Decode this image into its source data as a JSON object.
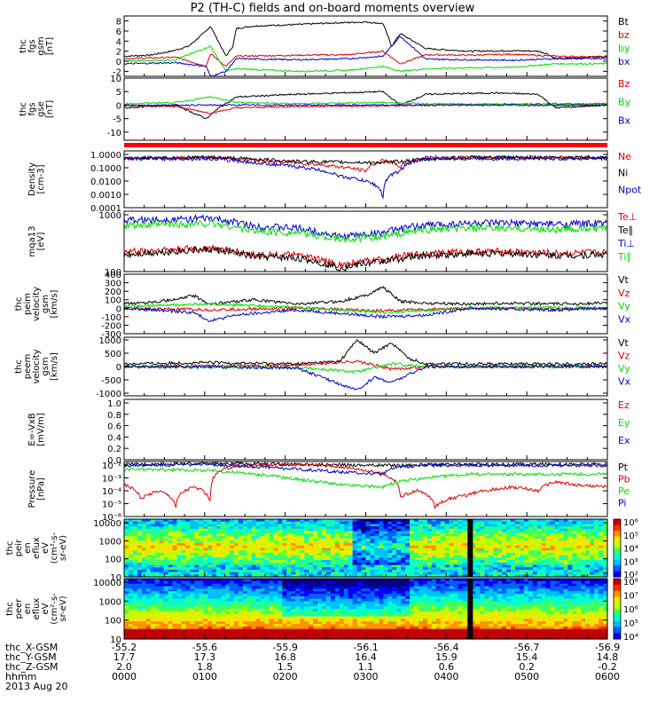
{
  "title": "P2 (TH-C) fields and on-board moments overview",
  "colors": {
    "black": "#000000",
    "red": "#e00000",
    "green": "#00dd00",
    "blue": "#0000d0"
  },
  "chart_data": [
    {
      "id": "fgs-gsm",
      "type": "line",
      "ylabel": [
        "thc",
        "fgs",
        "gsm",
        "[nT]"
      ],
      "ylim": [
        -3,
        9
      ],
      "yticks": [
        8,
        6,
        4,
        2,
        0,
        -2
      ],
      "series": [
        {
          "name": "Bt",
          "color": "#000000",
          "x": [
            0,
            30,
            55,
            75,
            95,
            100,
            118,
            126,
            130,
            150,
            200,
            240,
            280,
            300,
            310,
            320,
            350,
            400,
            450,
            480,
            490,
            500,
            560
          ],
          "values": [
            1,
            1.2,
            2,
            3,
            6,
            7,
            1,
            3,
            6.5,
            7,
            7.3,
            7.6,
            7.8,
            7.5,
            3,
            5.5,
            2.5,
            2,
            2.1,
            2,
            1.5,
            0.5,
            1
          ]
        },
        {
          "name": "bz",
          "color": "#e00000",
          "x": [
            0,
            60,
            95,
            100,
            118,
            130,
            200,
            260,
            300,
            320,
            350,
            400,
            450,
            500,
            560
          ],
          "values": [
            0.5,
            0.8,
            -1,
            1.5,
            -1,
            1,
            1.2,
            1.3,
            2,
            -0.5,
            1.3,
            1.2,
            1.4,
            1,
            0.8
          ]
        },
        {
          "name": "by",
          "color": "#00dd00",
          "x": [
            0,
            60,
            100,
            118,
            130,
            200,
            260,
            300,
            320,
            350,
            400,
            450,
            500,
            560
          ],
          "values": [
            0,
            0.3,
            3,
            -2,
            -1.5,
            -2,
            -1.8,
            -1,
            -2,
            -1.5,
            -1.3,
            -1.2,
            -0.5,
            -0.5
          ]
        },
        {
          "name": "bx",
          "color": "#0000d0",
          "x": [
            0,
            60,
            95,
            100,
            118,
            130,
            200,
            260,
            300,
            320,
            350,
            400,
            450,
            500,
            560
          ],
          "values": [
            -0.5,
            -0.3,
            -1,
            -3,
            -2,
            0.5,
            0.3,
            0.5,
            1,
            5,
            0.4,
            0.3,
            0.2,
            0.5,
            0.5
          ]
        }
      ],
      "legend": [
        "Bt",
        "bz",
        "by",
        "bx"
      ]
    },
    {
      "id": "fgs-gse",
      "type": "line",
      "ylabel": [
        "thc",
        "fgs",
        "gse",
        "[nT]"
      ],
      "ylim": [
        -13,
        10
      ],
      "yticks": [
        10,
        5,
        0,
        -5,
        -10
      ],
      "series": [
        {
          "name": "Bt",
          "color": "#000000",
          "x": [
            0,
            60,
            95,
            110,
            130,
            200,
            300,
            320,
            350,
            430,
            480,
            500,
            560
          ],
          "values": [
            -1,
            0,
            -5,
            -1,
            3,
            4,
            5,
            0,
            4,
            4.5,
            4,
            -1,
            0
          ]
        },
        {
          "name": "Bz",
          "color": "#e00000",
          "x": [
            0,
            60,
            100,
            130,
            200,
            300,
            350,
            430,
            500,
            560
          ],
          "values": [
            0,
            -0.5,
            -3,
            -1,
            -0.5,
            -0.3,
            0,
            0.3,
            0.5,
            0.5
          ]
        },
        {
          "name": "By",
          "color": "#00dd00",
          "x": [
            0,
            60,
            100,
            130,
            200,
            300,
            350,
            430,
            500,
            560
          ],
          "values": [
            0.5,
            1,
            3,
            1,
            0.5,
            1,
            0.5,
            0.3,
            0.2,
            0.4
          ]
        },
        {
          "name": "Bx",
          "color": "#0000d0",
          "x": [
            0,
            560
          ],
          "values": [
            0,
            0
          ]
        }
      ],
      "legend": [
        "Bz",
        "By",
        "Bx"
      ]
    },
    {
      "id": "density",
      "type": "line",
      "scale": "log",
      "ylabel": [
        "Density",
        "[cm-3]"
      ],
      "ylim": [
        0.0001,
        1.5
      ],
      "yticks": [
        "1.0000",
        "0.1000",
        "0.0100",
        "0.0010",
        "0.0001"
      ],
      "series": [
        {
          "name": "Ne",
          "color": "#e00000",
          "x": [
            0,
            100,
            150,
            200,
            250,
            280,
            300,
            320,
            350,
            400,
            450,
            500,
            560
          ],
          "values": [
            0.4,
            0.5,
            0.3,
            0.2,
            0.1,
            0.05,
            0.3,
            0.1,
            0.5,
            0.5,
            0.5,
            0.5,
            0.5
          ]
        },
        {
          "name": "Ni",
          "color": "#000000",
          "x": [
            0,
            100,
            200,
            300,
            400,
            560
          ],
          "values": [
            0.45,
            0.5,
            0.25,
            0.2,
            0.5,
            0.5
          ]
        },
        {
          "name": "Npot",
          "color": "#0000d0",
          "x": [
            0,
            100,
            150,
            200,
            250,
            290,
            300,
            320,
            350,
            400,
            450,
            500,
            560
          ],
          "values": [
            0.4,
            0.4,
            0.2,
            0.1,
            0.02,
            0.005,
            0.0005,
            0.05,
            0.4,
            0.4,
            0.4,
            0.4,
            0.4
          ]
        }
      ],
      "legend": [
        "Ne",
        "Ni",
        "Npot"
      ]
    },
    {
      "id": "mom-temp",
      "type": "line",
      "scale": "log",
      "ylabel": [
        "mqa13",
        "[eV]"
      ],
      "ylim": [
        30,
        4000
      ],
      "yticks": [
        "1000",
        "100"
      ],
      "series": [
        {
          "name": "Te⊥",
          "color": "#e00000",
          "x": [
            0,
            100,
            150,
            200,
            250,
            300,
            350,
            400,
            450,
            500,
            560
          ],
          "values": [
            150,
            200,
            120,
            110,
            50,
            80,
            130,
            150,
            150,
            130,
            140
          ]
        },
        {
          "name": "Te∥",
          "color": "#000000",
          "x": [
            0,
            100,
            150,
            200,
            250,
            300,
            350,
            400,
            450,
            500,
            560
          ],
          "values": [
            120,
            180,
            100,
            90,
            40,
            70,
            110,
            130,
            130,
            110,
            120
          ]
        },
        {
          "name": "Ti⊥",
          "color": "#0000d0",
          "x": [
            0,
            100,
            150,
            200,
            250,
            300,
            350,
            400,
            450,
            500,
            560
          ],
          "values": [
            1900,
            2200,
            1200,
            1000,
            500,
            700,
            1300,
            1500,
            1500,
            1400,
            1500
          ]
        },
        {
          "name": "Ti∥",
          "color": "#00dd00",
          "x": [
            0,
            100,
            150,
            200,
            250,
            300,
            350,
            400,
            450,
            500,
            560
          ],
          "values": [
            1200,
            1500,
            800,
            700,
            400,
            500,
            900,
            1000,
            1000,
            900,
            1000
          ]
        }
      ],
      "legend": [
        "Te⊥",
        "Te∥",
        "Ti⊥",
        "Ti∥"
      ]
    },
    {
      "id": "peim-velocity",
      "type": "line",
      "ylabel": [
        "thc",
        "peim",
        "velocity",
        "gsm",
        "[km/s]"
      ],
      "ylim": [
        -300,
        400
      ],
      "yticks": [
        400,
        300,
        200,
        100,
        0,
        -100,
        -200,
        -300
      ],
      "series": [
        {
          "name": "Vt",
          "color": "#000000",
          "x": [
            0,
            60,
            80,
            100,
            150,
            200,
            250,
            280,
            300,
            320,
            350,
            400,
            450,
            500,
            560
          ],
          "values": [
            50,
            100,
            150,
            50,
            100,
            50,
            80,
            150,
            250,
            80,
            60,
            50,
            60,
            50,
            60
          ]
        },
        {
          "name": "Vz",
          "color": "#e00000",
          "x": [
            0,
            100,
            200,
            300,
            400,
            500,
            560
          ],
          "values": [
            0,
            -20,
            0,
            -30,
            0,
            -10,
            0
          ]
        },
        {
          "name": "Vy",
          "color": "#00dd00",
          "x": [
            0,
            100,
            200,
            300,
            400,
            500,
            560
          ],
          "values": [
            20,
            50,
            10,
            -50,
            0,
            10,
            0
          ]
        },
        {
          "name": "Vx",
          "color": "#0000d0",
          "x": [
            0,
            80,
            100,
            130,
            200,
            300,
            350,
            400,
            500,
            560
          ],
          "values": [
            0,
            -50,
            -150,
            -80,
            -20,
            -100,
            -80,
            0,
            -20,
            0
          ]
        }
      ],
      "legend": [
        "Vt",
        "Vz",
        "Vy",
        "Vx"
      ]
    },
    {
      "id": "peem-velocity",
      "type": "line",
      "ylabel": [
        "thc",
        "peem",
        "velocity",
        "gsm",
        "[km/s]"
      ],
      "ylim": [
        -1100,
        1100
      ],
      "yticks": [
        1000,
        500,
        0,
        -500,
        -1000
      ],
      "series": [
        {
          "name": "Vt",
          "color": "#000000",
          "x": [
            0,
            100,
            200,
            250,
            270,
            290,
            310,
            330,
            350,
            400,
            560
          ],
          "values": [
            100,
            150,
            100,
            200,
            1000,
            500,
            900,
            300,
            100,
            100,
            100
          ]
        },
        {
          "name": "Vz",
          "color": "#e00000",
          "x": [
            0,
            200,
            270,
            310,
            350,
            560
          ],
          "values": [
            0,
            50,
            200,
            -100,
            0,
            0
          ]
        },
        {
          "name": "Vy",
          "color": "#00dd00",
          "x": [
            0,
            200,
            270,
            310,
            350,
            560
          ],
          "values": [
            0,
            -30,
            -200,
            100,
            0,
            0
          ]
        },
        {
          "name": "Vx",
          "color": "#0000d0",
          "x": [
            0,
            200,
            270,
            290,
            310,
            350,
            560
          ],
          "values": [
            0,
            -50,
            -900,
            -400,
            -600,
            0,
            0
          ]
        }
      ],
      "legend": [
        "Vt",
        "Vz",
        "Vy",
        "Vx"
      ]
    },
    {
      "id": "efield",
      "type": "line",
      "ylabel": [
        "E=-VxB",
        "[mV/m]"
      ],
      "ylim": [
        0,
        1
      ],
      "yticks": [
        "1.0",
        "0.8",
        "0.6",
        "0.4",
        "0.2",
        "0.0"
      ],
      "series": [],
      "legend": [
        "Ez",
        "Ey",
        "Ex"
      ],
      "legend_colors": [
        "#e00000",
        "#00dd00",
        "#0000d0"
      ]
    },
    {
      "id": "pressure",
      "type": "line",
      "scale": "log",
      "ylabel": [
        "Pressure",
        "[nPa]"
      ],
      "ylim": [
        1e-06,
        0.02
      ],
      "yticks": [
        "10⁻²",
        "10⁻³",
        "10⁻⁴",
        "10⁻⁵",
        "10⁻⁶"
      ],
      "series": [
        {
          "name": "Pt",
          "color": "#000000",
          "x": [
            0,
            100,
            200,
            300,
            400,
            560
          ],
          "values": [
            0.012,
            0.014,
            0.012,
            0.01,
            0.012,
            0.012
          ]
        },
        {
          "name": "Pb",
          "color": "#e00000",
          "x": [
            0,
            20,
            40,
            60,
            80,
            100,
            110,
            130,
            150,
            200,
            250,
            280,
            300,
            320,
            340,
            360,
            400,
            450,
            480,
            500,
            520,
            560
          ],
          "values": [
            0.0003,
            2e-05,
            0.0001,
            5e-06,
            0.0002,
            1e-05,
            0.003,
            0.009,
            0.01,
            0.012,
            0.008,
            0.004,
            0.002,
            3e-05,
            0.0001,
            5e-06,
            5e-05,
            0.0002,
            0.0001,
            0.0005,
            0.0003,
            0.0002
          ]
        },
        {
          "name": "Pe",
          "color": "#00dd00",
          "x": [
            0,
            100,
            150,
            200,
            250,
            300,
            350,
            400,
            500,
            560
          ],
          "values": [
            0.005,
            0.004,
            0.002,
            0.0008,
            0.0003,
            0.0002,
            0.001,
            0.002,
            0.002,
            0.002
          ]
        },
        {
          "name": "Pi",
          "color": "#0000d0",
          "x": [
            0,
            100,
            150,
            200,
            250,
            300,
            320,
            350,
            400,
            500,
            560
          ],
          "values": [
            0.01,
            0.012,
            0.008,
            0.005,
            0.003,
            0.002,
            0.008,
            0.01,
            0.01,
            0.01,
            0.01
          ]
        }
      ],
      "legend": [
        "Pt",
        "Pb",
        "Pe",
        "Pi"
      ]
    },
    {
      "id": "peir-spectrogram",
      "type": "heatmap",
      "ylabel": [
        "thc",
        "peir",
        "en",
        "eflux",
        "eV",
        "(cm²-s-",
        "sr-eV)"
      ],
      "ylim": [
        10,
        20000
      ],
      "yticks": [
        "10000",
        "1000",
        "100",
        "10"
      ],
      "colorbar_ticks": [
        "10⁶",
        "10⁵",
        "10⁴",
        "10³",
        "10²"
      ]
    },
    {
      "id": "peer-spectrogram",
      "type": "heatmap",
      "ylabel": [
        "thc",
        "peer",
        "en",
        "eflux",
        "eV",
        "(cm²-s-",
        "sr-eV)"
      ],
      "ylim": [
        10,
        20000
      ],
      "yticks": [
        "10000",
        "1000",
        "100",
        "10"
      ],
      "colorbar_ticks": [
        "10⁸",
        "10⁷",
        "10⁶",
        "10⁵",
        "10⁴"
      ]
    }
  ],
  "footer": {
    "rows": [
      {
        "label": "thc_X-GSM",
        "values": [
          "-55.2",
          "-55.6",
          "-55.9",
          "-56.1",
          "-56.4",
          "-56.7",
          "-56.9"
        ]
      },
      {
        "label": "thc_Y-GSM",
        "values": [
          "17.7",
          "17.3",
          "16.8",
          "16.4",
          "15.9",
          "15.4",
          "14.8"
        ]
      },
      {
        "label": "thc_Z-GSM",
        "values": [
          "2.0",
          "1.8",
          "1.5",
          "1.1",
          "0.6",
          "0.2",
          "-0.2"
        ]
      },
      {
        "label": "hhmm",
        "values": [
          "0000",
          "0100",
          "0200",
          "0300",
          "0400",
          "0500",
          "0600"
        ]
      }
    ],
    "date": "2013 Aug 20"
  }
}
